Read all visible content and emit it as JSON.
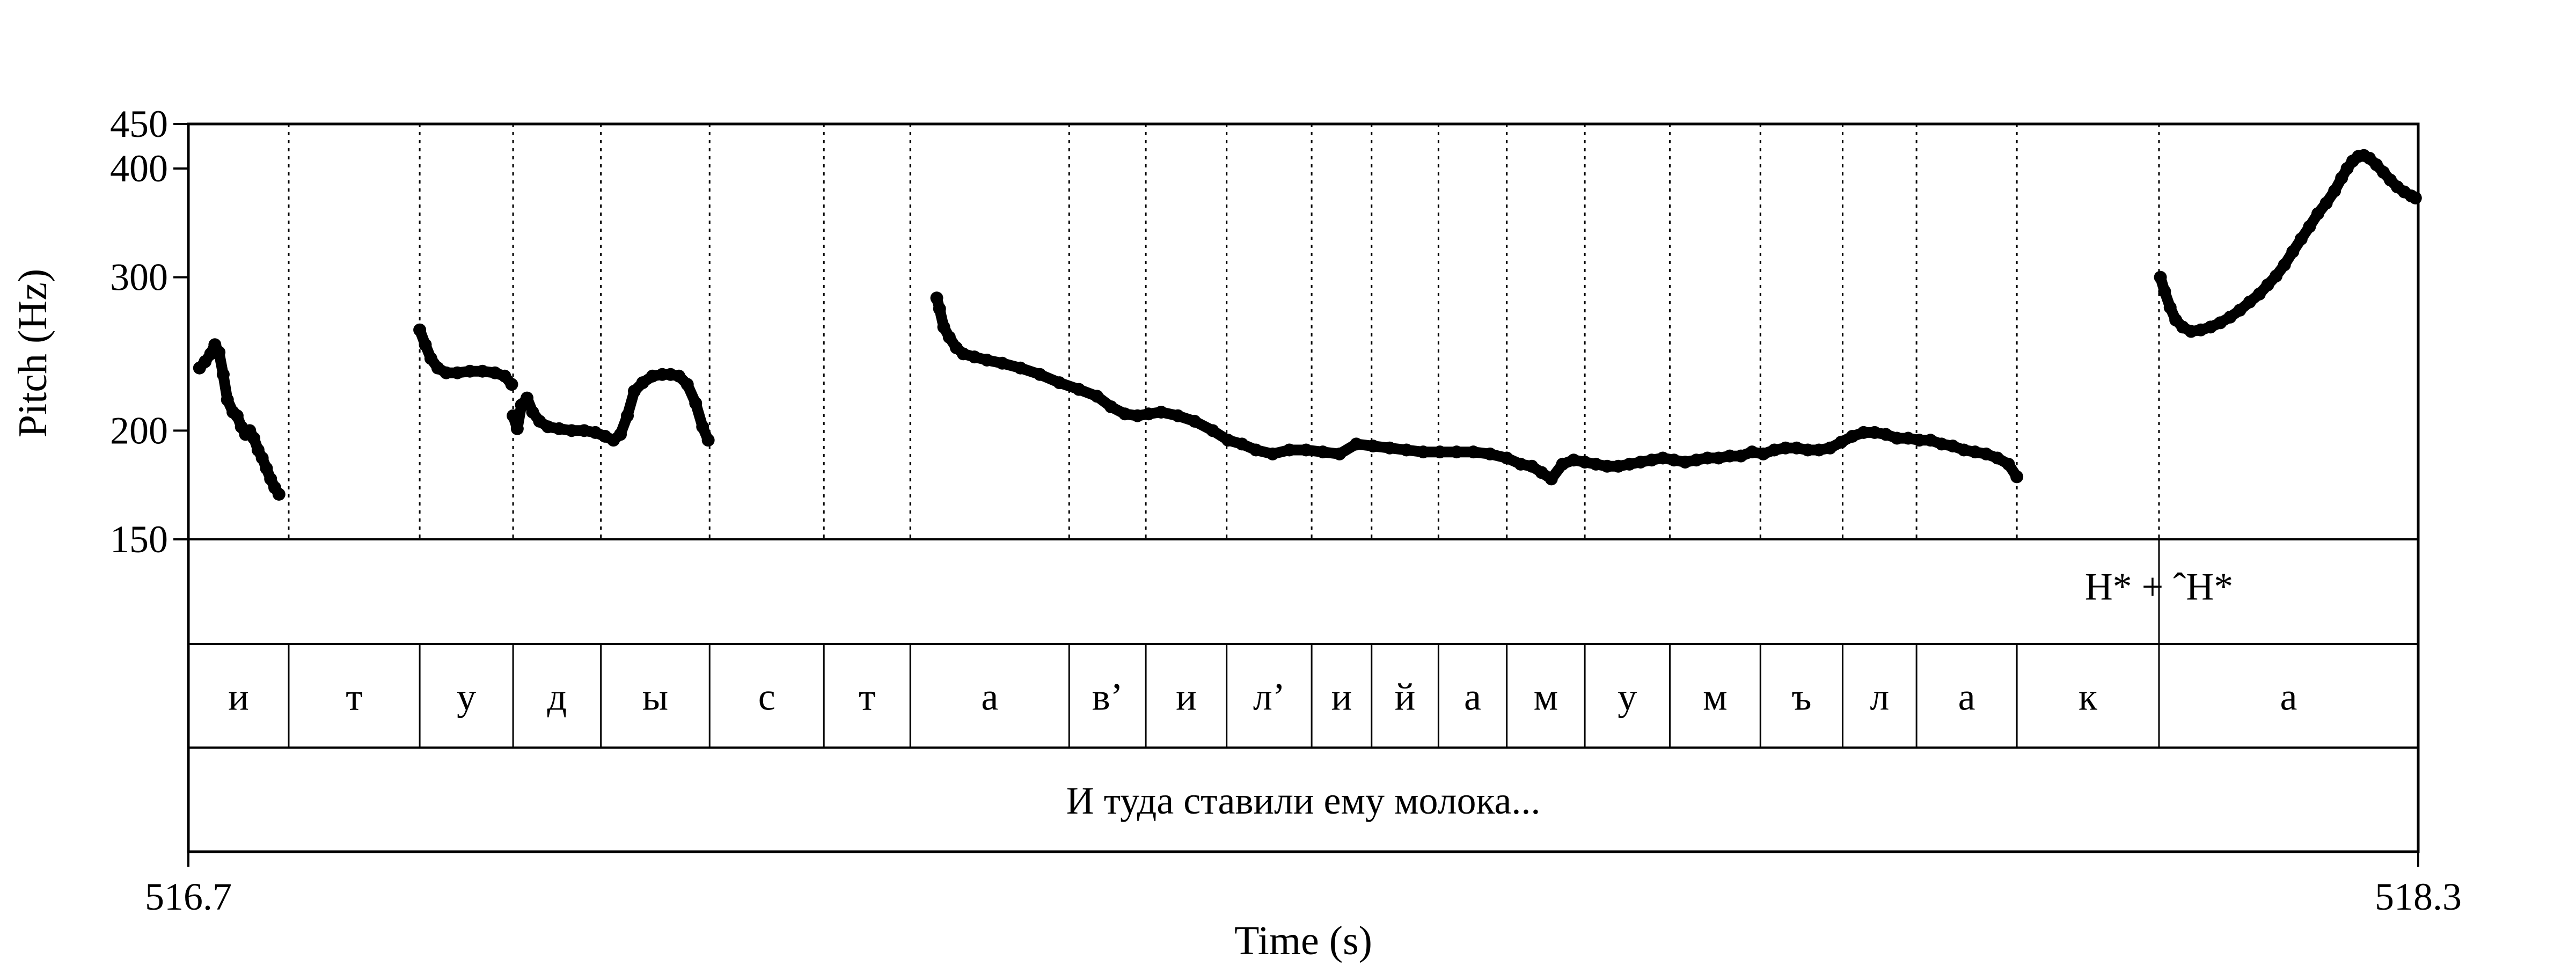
{
  "chart_data": {
    "type": "scatter",
    "title": "",
    "xlabel": "Time (s)",
    "ylabel": "Pitch (Hz)",
    "xlim": [
      516.7,
      518.3
    ],
    "ylim": [
      150,
      450
    ],
    "y_scale": "log",
    "x_tick_labels": [
      "516.7",
      "518.3"
    ],
    "y_ticks": [
      150,
      200,
      300,
      400,
      450
    ],
    "grid": false,
    "point_color": "#000000",
    "pitch_series": [
      {
        "x": [
          516.708,
          516.712,
          516.716,
          516.719,
          516.722,
          516.725,
          516.728,
          516.732,
          516.735,
          516.738,
          516.741,
          516.744,
          516.747,
          516.75,
          516.753,
          516.756,
          516.759,
          516.762,
          516.765
        ],
        "y": [
          236,
          240,
          245,
          251,
          246,
          232,
          217,
          210,
          208,
          202,
          198,
          200,
          196,
          190,
          186,
          181,
          176,
          172,
          169
        ]
      },
      {
        "x": [
          516.866,
          516.87,
          516.874,
          516.879,
          516.885,
          516.893,
          516.902,
          516.911,
          516.92,
          516.927,
          516.932
        ],
        "y": [
          261,
          251,
          242,
          236,
          233,
          233,
          234,
          234,
          233,
          231,
          226
        ]
      },
      {
        "x": [
          516.933,
          516.936,
          516.939,
          516.943,
          516.947,
          516.952,
          516.958,
          516.966,
          516.975,
          516.984,
          516.992,
          516.999,
          517.005,
          517.01,
          517.015,
          517.02,
          517.026,
          517.033,
          517.04,
          517.046,
          517.052,
          517.058,
          517.064,
          517.069,
          517.073
        ],
        "y": [
          208,
          201,
          214,
          218,
          210,
          205,
          202,
          201,
          200,
          200,
          199,
          197,
          195,
          198,
          208,
          222,
          227,
          231,
          232,
          232,
          231,
          226,
          215,
          202,
          195
        ]
      },
      {
        "x": [
          517.237,
          517.239,
          517.242,
          517.246,
          517.251,
          517.256,
          517.264,
          517.273,
          517.284,
          517.297,
          517.311,
          517.325,
          517.339,
          517.352,
          517.362,
          517.372,
          517.381,
          517.389,
          517.398,
          517.41,
          517.422,
          517.435,
          517.446,
          517.456,
          517.466,
          517.478,
          517.49,
          517.502,
          517.514,
          517.526,
          517.538,
          517.55,
          517.562,
          517.574,
          517.586,
          517.598,
          517.61,
          517.622,
          517.634,
          517.646,
          517.656,
          517.664,
          517.671,
          517.678,
          517.686,
          517.694,
          517.702,
          517.71,
          517.718,
          517.726,
          517.734,
          517.742,
          517.75,
          517.758,
          517.766,
          517.774,
          517.782,
          517.79,
          517.798,
          517.806,
          517.814,
          517.822,
          517.83,
          517.838,
          517.846,
          517.854,
          517.862,
          517.87,
          517.878,
          517.886,
          517.894,
          517.902,
          517.91,
          517.918,
          517.926,
          517.934,
          517.942,
          517.95,
          517.958,
          517.966,
          517.974,
          517.982,
          517.99,
          517.998,
          518.006,
          518.012
        ],
        "y": [
          284,
          276,
          263,
          256,
          249,
          245,
          243,
          241,
          239,
          236,
          232,
          227,
          223,
          219,
          213,
          209,
          208,
          209,
          210,
          208,
          205,
          200,
          195,
          193,
          190,
          188,
          190,
          190,
          189,
          188,
          193,
          192,
          191,
          190,
          189,
          189,
          189,
          189,
          188,
          186,
          183,
          182,
          179,
          176,
          183,
          185,
          184,
          183,
          182,
          182,
          183,
          184,
          185,
          186,
          185,
          184,
          185,
          186,
          186,
          187,
          187,
          189,
          188,
          190,
          191,
          191,
          190,
          190,
          191,
          194,
          197,
          199,
          199,
          198,
          196,
          196,
          195,
          195,
          193,
          192,
          190,
          189,
          188,
          186,
          183,
          177
        ]
      },
      {
        "x": [
          518.115,
          518.118,
          518.122,
          518.126,
          518.131,
          518.137,
          518.144,
          518.151,
          518.158,
          518.165,
          518.172,
          518.179,
          518.186,
          518.192,
          518.198,
          518.204,
          518.21,
          518.216,
          518.222,
          518.228,
          518.234,
          518.24,
          518.245,
          518.249,
          518.253,
          518.257,
          518.261,
          518.265,
          518.27,
          518.275,
          518.28,
          518.285,
          518.29,
          518.295,
          518.298
        ],
        "y": [
          300,
          289,
          277,
          268,
          263,
          260,
          261,
          263,
          266,
          270,
          275,
          281,
          287,
          294,
          301,
          310,
          321,
          332,
          343,
          355,
          365,
          377,
          390,
          400,
          408,
          413,
          414,
          411,
          404,
          396,
          388,
          381,
          376,
          372,
          370
        ]
      }
    ]
  },
  "tiers": {
    "tones": {
      "separator_time": 518.114,
      "label": "H* + ˆH*"
    },
    "segments": [
      {
        "label": "и",
        "start": 516.7,
        "end": 516.772
      },
      {
        "label": "т",
        "start": 516.772,
        "end": 516.866
      },
      {
        "label": "у",
        "start": 516.866,
        "end": 516.933
      },
      {
        "label": "д",
        "start": 516.933,
        "end": 516.996
      },
      {
        "label": "ы",
        "start": 516.996,
        "end": 517.074
      },
      {
        "label": "с",
        "start": 517.074,
        "end": 517.156
      },
      {
        "label": "т",
        "start": 517.156,
        "end": 517.218
      },
      {
        "label": "а",
        "start": 517.218,
        "end": 517.332
      },
      {
        "label": "в’",
        "start": 517.332,
        "end": 517.387
      },
      {
        "label": "и",
        "start": 517.387,
        "end": 517.445
      },
      {
        "label": "л’",
        "start": 517.445,
        "end": 517.506
      },
      {
        "label": "и",
        "start": 517.506,
        "end": 517.549
      },
      {
        "label": "й",
        "start": 517.549,
        "end": 517.597
      },
      {
        "label": "а",
        "start": 517.597,
        "end": 517.646
      },
      {
        "label": "м",
        "start": 517.646,
        "end": 517.702
      },
      {
        "label": "у",
        "start": 517.702,
        "end": 517.763
      },
      {
        "label": "м",
        "start": 517.763,
        "end": 517.828
      },
      {
        "label": "ъ",
        "start": 517.828,
        "end": 517.887
      },
      {
        "label": "л",
        "start": 517.887,
        "end": 517.94
      },
      {
        "label": "а",
        "start": 517.94,
        "end": 518.012
      },
      {
        "label": "к",
        "start": 518.012,
        "end": 518.114
      },
      {
        "label": "а",
        "start": 518.114,
        "end": 518.3
      }
    ],
    "sentence": {
      "label": "И туда ставили ему молока..."
    }
  }
}
